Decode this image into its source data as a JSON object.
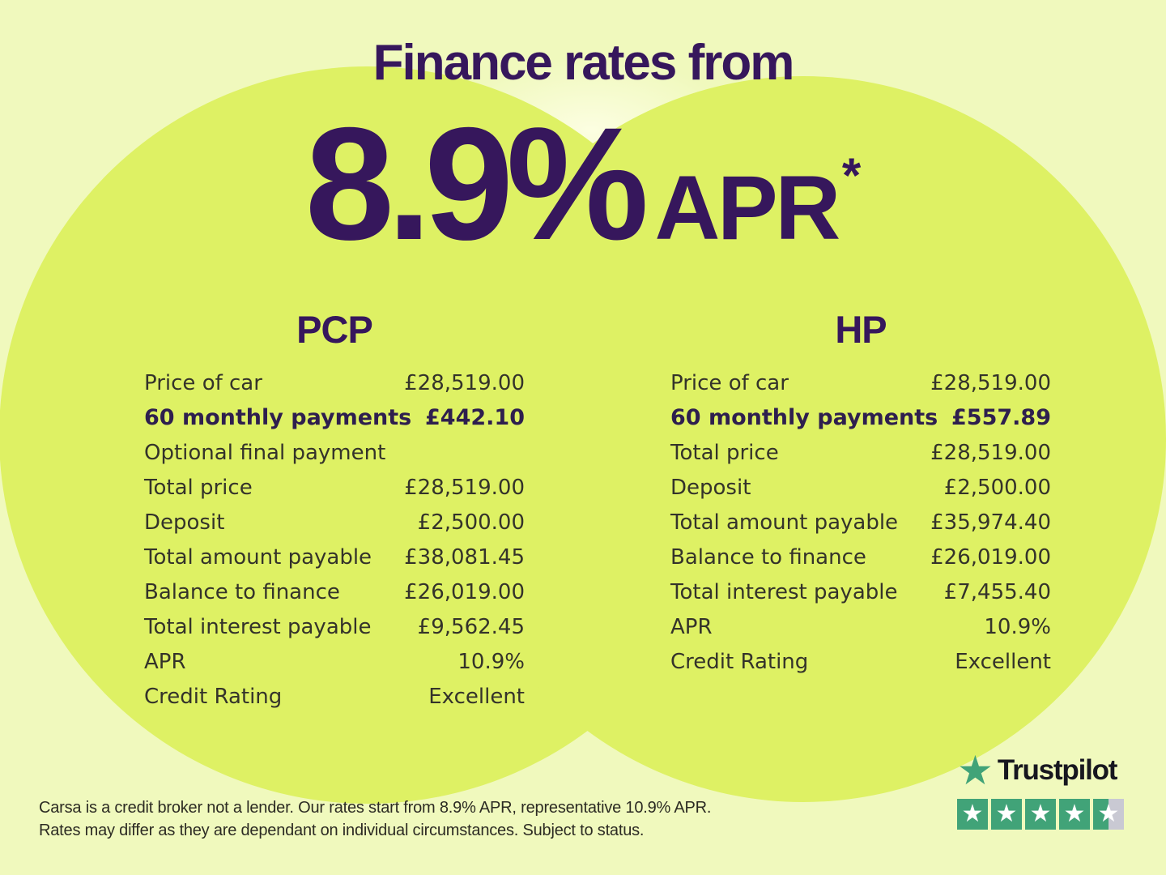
{
  "colors": {
    "pale": "#f0f9bd",
    "lime": "#def164",
    "purple": "#36175c",
    "table-text": "#34332a",
    "table-bold": "#2e1f4e",
    "tp-green": "#41a378",
    "tp-gray": "#c9c9d3",
    "tp-dark": "#17171f",
    "fine-text": "#2c2b23"
  },
  "header": {
    "title": "Finance rates from",
    "rate": "8.9%",
    "rate_suffix": "APR",
    "asterisk": "*"
  },
  "tables": {
    "pcp": {
      "heading": "PCP",
      "rows": [
        {
          "label": "Price of car",
          "value": "£28,519.00",
          "bold": false
        },
        {
          "label": "60 monthly payments",
          "value": "£442.10",
          "bold": true
        },
        {
          "label": "Optional final payment",
          "value": "",
          "bold": false
        },
        {
          "label": "Total price",
          "value": "£28,519.00",
          "bold": false
        },
        {
          "label": "Deposit",
          "value": "£2,500.00",
          "bold": false
        },
        {
          "label": "Total amount payable",
          "value": "£38,081.45",
          "bold": false
        },
        {
          "label": "Balance to finance",
          "value": "£26,019.00",
          "bold": false
        },
        {
          "label": "Total interest payable",
          "value": "£9,562.45",
          "bold": false
        },
        {
          "label": "APR",
          "value": "10.9%",
          "bold": false
        },
        {
          "label": "Credit Rating",
          "value": "Excellent",
          "bold": false
        }
      ]
    },
    "hp": {
      "heading": "HP",
      "rows": [
        {
          "label": "Price of car",
          "value": "£28,519.00",
          "bold": false
        },
        {
          "label": "60 monthly payments",
          "value": "£557.89",
          "bold": true
        },
        {
          "label": "Total price",
          "value": "£28,519.00",
          "bold": false
        },
        {
          "label": "Deposit",
          "value": "£2,500.00",
          "bold": false
        },
        {
          "label": "Total amount payable",
          "value": "£35,974.40",
          "bold": false
        },
        {
          "label": "Balance to finance",
          "value": "£26,019.00",
          "bold": false
        },
        {
          "label": "Total interest payable",
          "value": "£7,455.40",
          "bold": false
        },
        {
          "label": "APR",
          "value": "10.9%",
          "bold": false
        },
        {
          "label": "Credit Rating",
          "value": "Excellent",
          "bold": false
        }
      ]
    }
  },
  "disclaimer": {
    "line1": "Carsa is a credit broker not a lender. Our rates start from 8.9% APR, representative 10.9% APR.",
    "line2": "Rates may differ as they are dependant on individual circumstances. Subject to status."
  },
  "trustpilot": {
    "brand": "Trustpilot",
    "max_stars": 5,
    "rating": 4.5,
    "star_glyph": "★"
  }
}
